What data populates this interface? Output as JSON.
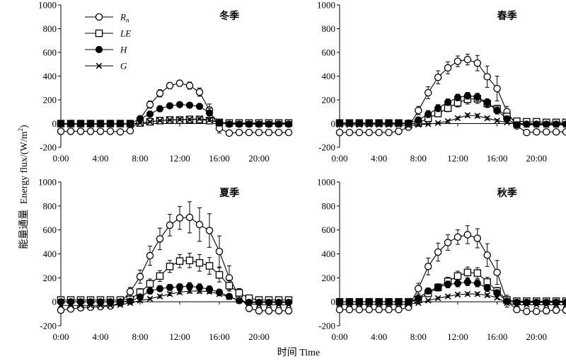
{
  "figure": {
    "ylabel_cn": "能量通量",
    "ylabel_en": "Energy flux/(W/m",
    "ylabel_sup": "2",
    "ylabel_close": ")",
    "xlabel": "时间 Time",
    "colors": {
      "line": "#000000",
      "background": "#ffffff"
    }
  },
  "legend": {
    "entries": [
      {
        "key": "Rn",
        "label": "R",
        "sub": "n",
        "marker": "open-circle"
      },
      {
        "key": "LE",
        "label": "LE",
        "sub": "",
        "marker": "open-square"
      },
      {
        "key": "H",
        "label": "H",
        "sub": "",
        "marker": "filled-circle"
      },
      {
        "key": "G",
        "label": "G",
        "sub": "",
        "marker": "cross"
      }
    ]
  },
  "chart_data": [
    {
      "type": "line",
      "title": "冬季",
      "x": [
        0,
        1,
        2,
        3,
        4,
        5,
        6,
        7,
        8,
        9,
        10,
        11,
        12,
        13,
        14,
        15,
        16,
        17,
        18,
        19,
        20,
        21,
        22,
        23
      ],
      "xticks": [
        "0:00",
        "4:00",
        "8:00",
        "12:00",
        "16:00",
        "20:00"
      ],
      "xtick_hours": [
        0,
        4,
        8,
        12,
        16,
        20
      ],
      "xlim": [
        0,
        23
      ],
      "ylim": [
        -200,
        1000
      ],
      "yticks": [
        -200,
        0,
        200,
        400,
        600,
        800,
        1000
      ],
      "series": [
        {
          "name": "Rn",
          "marker": "open-circle",
          "values": [
            -65,
            -65,
            -65,
            -65,
            -65,
            -65,
            -70,
            -60,
            40,
            160,
            255,
            320,
            340,
            320,
            265,
            115,
            -40,
            -80,
            -75,
            -75,
            -75,
            -75,
            -75,
            -75
          ],
          "err": [
            10,
            10,
            10,
            10,
            10,
            10,
            10,
            15,
            25,
            30,
            30,
            25,
            25,
            30,
            35,
            50,
            40,
            15,
            10,
            10,
            10,
            10,
            10,
            10
          ]
        },
        {
          "name": "LE",
          "marker": "open-square",
          "values": [
            0,
            0,
            0,
            0,
            0,
            0,
            0,
            0,
            5,
            15,
            25,
            30,
            30,
            35,
            35,
            25,
            10,
            5,
            5,
            5,
            5,
            5,
            5,
            5
          ],
          "err": [
            8,
            8,
            8,
            8,
            8,
            8,
            8,
            8,
            8,
            10,
            10,
            12,
            12,
            12,
            12,
            12,
            10,
            8,
            8,
            8,
            8,
            8,
            8,
            8
          ]
        },
        {
          "name": "H",
          "marker": "filled-circle",
          "values": [
            0,
            0,
            0,
            0,
            0,
            0,
            0,
            0,
            40,
            80,
            125,
            150,
            160,
            155,
            145,
            90,
            5,
            -5,
            -5,
            -5,
            -5,
            -5,
            -5,
            -5
          ],
          "err": [
            8,
            8,
            8,
            8,
            8,
            8,
            8,
            8,
            20,
            22,
            25,
            20,
            20,
            22,
            22,
            40,
            20,
            10,
            8,
            8,
            8,
            8,
            8,
            8
          ]
        },
        {
          "name": "G",
          "marker": "cross",
          "values": [
            -5,
            -5,
            -5,
            -5,
            -5,
            -5,
            -5,
            -5,
            5,
            15,
            25,
            30,
            35,
            35,
            40,
            30,
            10,
            -5,
            -5,
            -5,
            -5,
            -5,
            -5,
            -5
          ],
          "err": [
            5,
            5,
            5,
            5,
            5,
            5,
            5,
            5,
            8,
            8,
            8,
            8,
            10,
            10,
            10,
            12,
            10,
            5,
            5,
            5,
            5,
            5,
            5,
            5
          ]
        }
      ]
    },
    {
      "type": "line",
      "title": "春季",
      "x": [
        0,
        1,
        2,
        3,
        4,
        5,
        6,
        7,
        8,
        9,
        10,
        11,
        12,
        13,
        14,
        15,
        16,
        17,
        18,
        19,
        20,
        21,
        22,
        23
      ],
      "xticks": [
        "0:00",
        "4:00",
        "8:00",
        "12:00",
        "16:00",
        "20:00"
      ],
      "xtick_hours": [
        0,
        4,
        8,
        12,
        16,
        20
      ],
      "xlim": [
        0,
        23
      ],
      "ylim": [
        -200,
        1000
      ],
      "yticks": [
        -200,
        0,
        200,
        400,
        600,
        800,
        1000
      ],
      "series": [
        {
          "name": "Rn",
          "marker": "open-circle",
          "values": [
            -75,
            -75,
            -75,
            -75,
            -75,
            -75,
            -65,
            -30,
            110,
            260,
            390,
            470,
            525,
            540,
            510,
            395,
            295,
            100,
            -20,
            -75,
            -70,
            -70,
            -70,
            -70
          ],
          "err": [
            15,
            15,
            15,
            15,
            15,
            15,
            15,
            15,
            35,
            50,
            55,
            50,
            45,
            45,
            65,
            90,
            105,
            45,
            20,
            15,
            15,
            15,
            15,
            15
          ]
        },
        {
          "name": "LE",
          "marker": "open-square",
          "values": [
            5,
            5,
            5,
            5,
            5,
            5,
            5,
            0,
            5,
            45,
            85,
            130,
            175,
            205,
            210,
            170,
            125,
            60,
            20,
            15,
            15,
            10,
            10,
            10
          ],
          "err": [
            10,
            10,
            10,
            10,
            10,
            10,
            10,
            10,
            15,
            20,
            25,
            30,
            35,
            40,
            40,
            35,
            30,
            25,
            15,
            10,
            10,
            10,
            10,
            10
          ]
        },
        {
          "name": "H",
          "marker": "filled-circle",
          "values": [
            5,
            5,
            5,
            5,
            5,
            5,
            5,
            5,
            30,
            80,
            130,
            180,
            220,
            235,
            225,
            175,
            110,
            40,
            -10,
            -5,
            -5,
            -5,
            -5,
            -5
          ],
          "err": [
            8,
            8,
            8,
            8,
            8,
            8,
            8,
            8,
            25,
            30,
            30,
            28,
            28,
            28,
            30,
            35,
            30,
            20,
            10,
            8,
            8,
            8,
            8,
            8
          ]
        },
        {
          "name": "G",
          "marker": "cross",
          "values": [
            -10,
            -10,
            -10,
            -10,
            -10,
            -10,
            -10,
            -15,
            -10,
            -5,
            5,
            20,
            45,
            70,
            65,
            45,
            25,
            10,
            -5,
            -10,
            -10,
            -10,
            -10,
            -10
          ],
          "err": [
            5,
            5,
            5,
            5,
            5,
            5,
            5,
            5,
            5,
            8,
            8,
            10,
            12,
            14,
            14,
            12,
            10,
            8,
            5,
            5,
            5,
            5,
            5,
            5
          ]
        }
      ]
    },
    {
      "type": "line",
      "title": "夏季",
      "x": [
        0,
        1,
        2,
        3,
        4,
        5,
        6,
        7,
        8,
        9,
        10,
        11,
        12,
        13,
        14,
        15,
        16,
        17,
        18,
        19,
        20,
        21,
        22,
        23
      ],
      "xticks": [
        "0:00",
        "4:00",
        "8:00",
        "12:00",
        "16:00",
        "20:00"
      ],
      "xtick_hours": [
        0,
        4,
        8,
        12,
        16,
        20
      ],
      "xlim": [
        0,
        23
      ],
      "ylim": [
        -200,
        1000
      ],
      "yticks": [
        -200,
        0,
        200,
        400,
        600,
        800,
        1000
      ],
      "series": [
        {
          "name": "Rn",
          "marker": "open-circle",
          "values": [
            -70,
            -60,
            -50,
            -45,
            -40,
            -35,
            -10,
            85,
            210,
            385,
            525,
            640,
            700,
            705,
            645,
            595,
            420,
            200,
            50,
            -55,
            -75,
            -75,
            -75,
            -75
          ],
          "err": [
            15,
            15,
            15,
            15,
            15,
            15,
            20,
            35,
            55,
            80,
            90,
            90,
            95,
            130,
            140,
            140,
            130,
            100,
            60,
            25,
            15,
            15,
            15,
            15
          ]
        },
        {
          "name": "LE",
          "marker": "open-square",
          "values": [
            15,
            15,
            15,
            15,
            15,
            15,
            15,
            20,
            80,
            150,
            215,
            295,
            340,
            345,
            325,
            300,
            225,
            135,
            75,
            30,
            15,
            15,
            15,
            15
          ],
          "err": [
            10,
            10,
            10,
            10,
            10,
            10,
            10,
            15,
            30,
            40,
            45,
            50,
            55,
            60,
            70,
            70,
            60,
            45,
            30,
            20,
            10,
            10,
            10,
            10
          ]
        },
        {
          "name": "H",
          "marker": "filled-circle",
          "values": [
            0,
            0,
            0,
            0,
            0,
            0,
            0,
            5,
            40,
            90,
            110,
            120,
            125,
            130,
            120,
            105,
            80,
            45,
            10,
            -5,
            -5,
            -5,
            -5,
            -5
          ],
          "err": [
            8,
            8,
            8,
            8,
            8,
            8,
            8,
            10,
            20,
            25,
            25,
            25,
            25,
            30,
            30,
            28,
            25,
            20,
            12,
            8,
            8,
            8,
            8,
            8
          ]
        },
        {
          "name": "G",
          "marker": "cross",
          "values": [
            -30,
            -30,
            -30,
            -30,
            -30,
            -30,
            -25,
            -10,
            10,
            25,
            45,
            65,
            80,
            90,
            90,
            85,
            65,
            40,
            10,
            -15,
            -25,
            -25,
            -25,
            -25
          ],
          "err": [
            5,
            5,
            5,
            5,
            5,
            5,
            5,
            8,
            10,
            10,
            12,
            14,
            15,
            18,
            18,
            16,
            15,
            12,
            8,
            5,
            5,
            5,
            5,
            5
          ]
        }
      ]
    },
    {
      "type": "line",
      "title": "秋季",
      "x": [
        0,
        1,
        2,
        3,
        4,
        5,
        6,
        7,
        8,
        9,
        10,
        11,
        12,
        13,
        14,
        15,
        16,
        17,
        18,
        19,
        20,
        21,
        22,
        23
      ],
      "xticks": [
        "0:00",
        "4:00",
        "8:00",
        "12:00",
        "16:00",
        "20:00"
      ],
      "xtick_hours": [
        0,
        4,
        8,
        12,
        16,
        20
      ],
      "xlim": [
        0,
        23
      ],
      "ylim": [
        -200,
        1000
      ],
      "yticks": [
        -200,
        0,
        200,
        400,
        600,
        800,
        1000
      ],
      "series": [
        {
          "name": "Rn",
          "marker": "open-circle",
          "values": [
            -65,
            -65,
            -65,
            -65,
            -65,
            -65,
            -65,
            -45,
            110,
            295,
            415,
            495,
            540,
            560,
            530,
            390,
            245,
            5,
            -65,
            -80,
            -80,
            -75,
            -70,
            -70
          ],
          "err": [
            15,
            15,
            15,
            15,
            15,
            15,
            15,
            15,
            45,
            70,
            75,
            65,
            60,
            75,
            80,
            95,
            100,
            50,
            20,
            15,
            15,
            15,
            15,
            15
          ]
        },
        {
          "name": "LE",
          "marker": "open-square",
          "values": [
            0,
            0,
            0,
            0,
            0,
            0,
            0,
            0,
            20,
            70,
            120,
            170,
            215,
            245,
            240,
            165,
            90,
            15,
            5,
            5,
            5,
            5,
            5,
            5
          ],
          "err": [
            10,
            10,
            10,
            10,
            10,
            10,
            10,
            10,
            15,
            25,
            30,
            35,
            40,
            45,
            45,
            40,
            30,
            15,
            10,
            10,
            10,
            10,
            10,
            10
          ]
        },
        {
          "name": "H",
          "marker": "filled-circle",
          "values": [
            0,
            0,
            0,
            0,
            0,
            0,
            0,
            0,
            30,
            90,
            120,
            145,
            155,
            165,
            155,
            115,
            75,
            5,
            -5,
            -5,
            -5,
            -5,
            -5,
            -5
          ],
          "err": [
            8,
            8,
            8,
            8,
            8,
            8,
            8,
            8,
            20,
            25,
            28,
            28,
            30,
            30,
            30,
            30,
            25,
            12,
            8,
            8,
            8,
            8,
            8,
            8
          ]
        },
        {
          "name": "G",
          "marker": "cross",
          "values": [
            -20,
            -20,
            -20,
            -20,
            -20,
            -20,
            -20,
            -20,
            -10,
            10,
            30,
            45,
            60,
            65,
            65,
            55,
            35,
            -10,
            -25,
            -25,
            -25,
            -25,
            -25,
            -25
          ],
          "err": [
            5,
            5,
            5,
            5,
            5,
            5,
            5,
            5,
            5,
            8,
            10,
            10,
            12,
            12,
            12,
            12,
            10,
            8,
            5,
            5,
            5,
            5,
            5,
            5
          ]
        }
      ]
    }
  ]
}
